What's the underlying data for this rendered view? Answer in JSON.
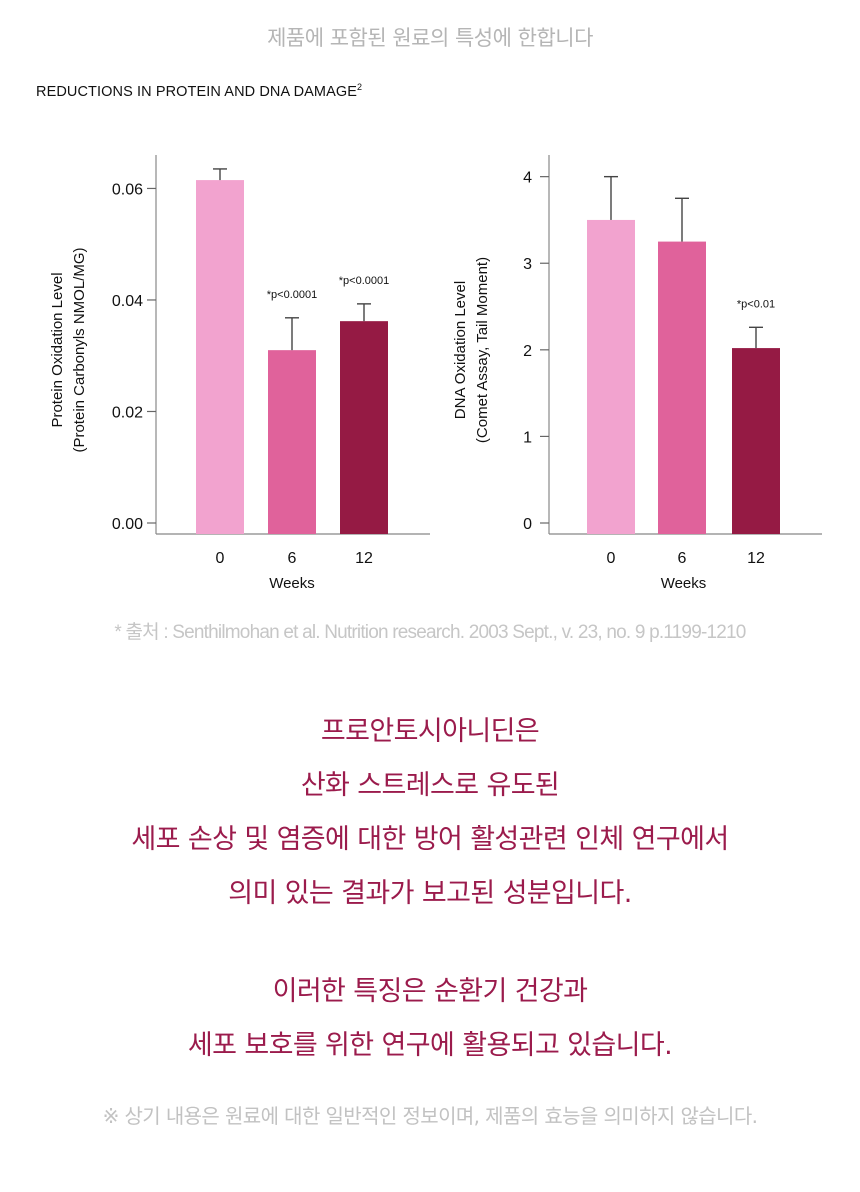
{
  "top_note": "제품에 포함된 원료의 특성에 한합니다",
  "section_title": {
    "text": "REDUCTIONS IN PROTEIN AND DNA DAMAGE",
    "superscript": "2"
  },
  "colors": {
    "week0": "#f2a3cf",
    "week6": "#e0629b",
    "week12": "#951a44",
    "accent_text": "#9b1b4c",
    "muted_text": "#b5b5b5"
  },
  "chart_data": [
    {
      "type": "bar",
      "categories": [
        "0",
        "6",
        "12"
      ],
      "values": [
        0.0615,
        0.031,
        0.0362
      ],
      "error_upper": [
        0.0635,
        0.0368,
        0.0393
      ],
      "annotations": [
        "",
        "*p<0.0001",
        "*p<0.0001"
      ],
      "ylim": [
        0,
        0.066
      ],
      "yticks": [
        "0.00",
        "0.02",
        "0.04",
        "0.06"
      ],
      "ytick_values": [
        0,
        0.02,
        0.04,
        0.06
      ],
      "ylabel_line1": "Protein Oxidation Level",
      "ylabel_line2": "(Protein Carbonyls NMOL/MG)",
      "xlabel": "Weeks"
    },
    {
      "type": "bar",
      "categories": [
        "0",
        "6",
        "12"
      ],
      "values": [
        3.5,
        3.25,
        2.02
      ],
      "error_upper": [
        4.0,
        3.75,
        2.26
      ],
      "annotations": [
        "",
        "",
        "*p<0.01"
      ],
      "ylim": [
        0,
        4.25
      ],
      "yticks": [
        "0",
        "1",
        "2",
        "3",
        "4"
      ],
      "ytick_values": [
        0,
        1,
        2,
        3,
        4
      ],
      "ylabel_line1": "DNA Oxidation Level",
      "ylabel_line2": "(Comet Assay, Tail Moment)",
      "xlabel": "Weeks"
    }
  ],
  "source": "* 출처 : Senthilmohan et al. Nutrition research. 2003 Sept., v. 23, no. 9 p.1199-1210",
  "main_text": {
    "lines": [
      "프로안토시아니딘은",
      "산화 스트레스로 유도된",
      "세포 손상 및 염증에 대한 방어 활성관련 인체 연구에서",
      "의미 있는 결과가 보고된 성분입니다.",
      "",
      "이러한 특징은 순환기 건강과",
      "세포 보호를 위한 연구에 활용되고 있습니다."
    ]
  },
  "disclaimer": "※ 상기 내용은 원료에 대한 일반적인 정보이며, 제품의 효능을 의미하지 않습니다."
}
